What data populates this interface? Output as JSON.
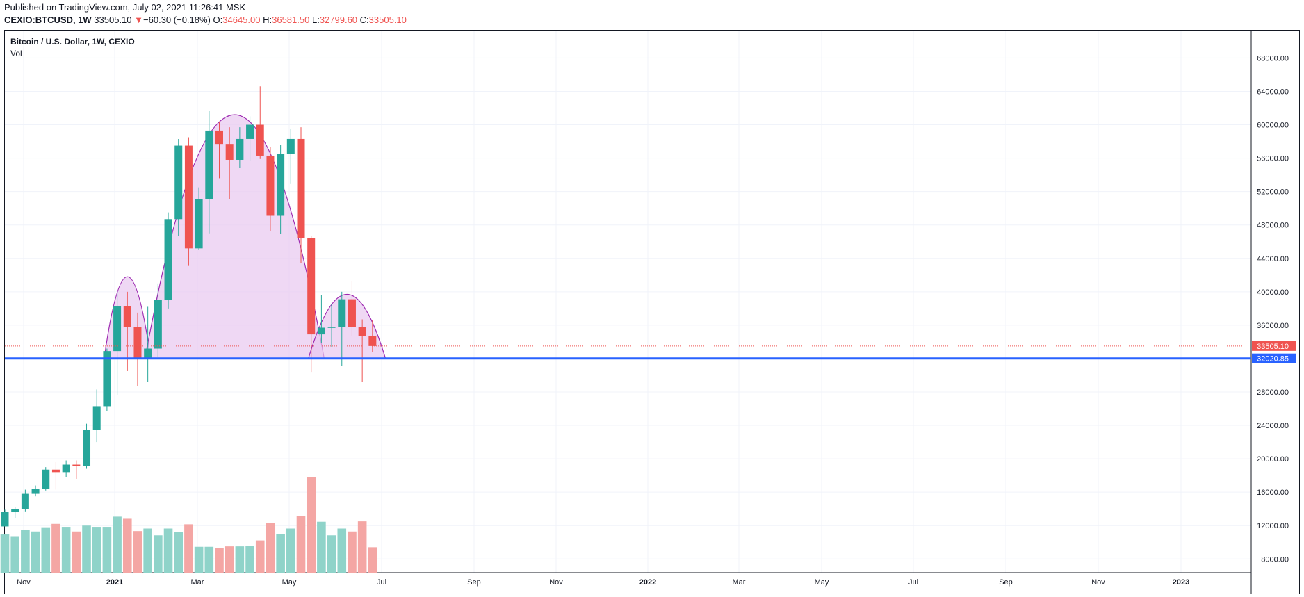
{
  "header": {
    "published": "Published on TradingView.com, July 02, 2021 11:26:41 MSK",
    "symbol": "CEXIO:BTCUSD, 1W",
    "last": "33505.10",
    "change_arrow": "▼",
    "change": "−60.30 (−0.18%)",
    "o_label": "O:",
    "o_value": "34645.00",
    "h_label": "H:",
    "h_value": "36581.50",
    "l_label": "L:",
    "l_value": "32799.60",
    "c_label": "C:",
    "c_value": "33505.10"
  },
  "legend": {
    "title": "Bitcoin / U.S. Dollar, 1W, CEXIO",
    "indicator": "Vol"
  },
  "colors": {
    "up": "#26a69a",
    "down": "#ef5350",
    "vol_up": "#8fd3c9",
    "vol_down": "#f4a6a4",
    "support": "#2962ff",
    "pattern_fill": "#e8c8ef",
    "pattern_stroke": "#9c27b0"
  },
  "chart_data": {
    "type": "candlestick",
    "title": "Bitcoin / U.S. Dollar, 1W, CEXIO",
    "y_axis_ticks": [
      "68000.00",
      "64000.00",
      "60000.00",
      "56000.00",
      "52000.00",
      "48000.00",
      "44000.00",
      "40000.00",
      "36000.00",
      "32000.00",
      "28000.00",
      "24000.00",
      "20000.00",
      "16000.00",
      "12000.00",
      "8000.00"
    ],
    "x_axis_ticks": [
      "Nov",
      "2021",
      "Mar",
      "May",
      "Jul",
      "Sep",
      "Nov",
      "2022",
      "Mar",
      "May",
      "Jul",
      "Sep",
      "Nov",
      "2023"
    ],
    "last_price_label": "33505.10",
    "support_label": "32020.85",
    "support_level": 32020.85,
    "last_price": 33505.1,
    "candles": [
      {
        "o": 11900,
        "h": 13900,
        "l": 11900,
        "c": 13600
      },
      {
        "o": 13600,
        "h": 14200,
        "l": 12900,
        "c": 14000
      },
      {
        "o": 14000,
        "h": 16300,
        "l": 13700,
        "c": 15800
      },
      {
        "o": 15800,
        "h": 16800,
        "l": 15500,
        "c": 16400
      },
      {
        "o": 16400,
        "h": 19000,
        "l": 16200,
        "c": 18700
      },
      {
        "o": 18700,
        "h": 19600,
        "l": 16300,
        "c": 18400
      },
      {
        "o": 18400,
        "h": 19800,
        "l": 17800,
        "c": 19300
      },
      {
        "o": 19300,
        "h": 19800,
        "l": 17600,
        "c": 19100
      },
      {
        "o": 19100,
        "h": 24200,
        "l": 18800,
        "c": 23500
      },
      {
        "o": 23500,
        "h": 28300,
        "l": 22000,
        "c": 26300
      },
      {
        "o": 26300,
        "h": 33200,
        "l": 25700,
        "c": 32900
      },
      {
        "o": 32900,
        "h": 40000,
        "l": 27600,
        "c": 38300
      },
      {
        "o": 38300,
        "h": 40000,
        "l": 30500,
        "c": 35800
      },
      {
        "o": 35800,
        "h": 37500,
        "l": 28700,
        "c": 32100
      },
      {
        "o": 32100,
        "h": 38200,
        "l": 29200,
        "c": 33200
      },
      {
        "o": 33200,
        "h": 41000,
        "l": 32200,
        "c": 39000
      },
      {
        "o": 39000,
        "h": 49500,
        "l": 38000,
        "c": 48700
      },
      {
        "o": 48700,
        "h": 58300,
        "l": 46700,
        "c": 57500
      },
      {
        "o": 57500,
        "h": 58500,
        "l": 43100,
        "c": 45200
      },
      {
        "o": 45200,
        "h": 52500,
        "l": 45000,
        "c": 51100
      },
      {
        "o": 51100,
        "h": 61700,
        "l": 47000,
        "c": 59300
      },
      {
        "o": 59300,
        "h": 60300,
        "l": 53600,
        "c": 57700
      },
      {
        "o": 57700,
        "h": 59700,
        "l": 51100,
        "c": 55800
      },
      {
        "o": 55800,
        "h": 59700,
        "l": 54800,
        "c": 58300
      },
      {
        "o": 58300,
        "h": 61000,
        "l": 55700,
        "c": 60000
      },
      {
        "o": 60000,
        "h": 64600,
        "l": 55900,
        "c": 56300
      },
      {
        "o": 56300,
        "h": 57300,
        "l": 47300,
        "c": 49100
      },
      {
        "o": 49100,
        "h": 57600,
        "l": 46900,
        "c": 56500
      },
      {
        "o": 56500,
        "h": 59500,
        "l": 52900,
        "c": 58300
      },
      {
        "o": 58300,
        "h": 59700,
        "l": 43400,
        "c": 46400
      },
      {
        "o": 46400,
        "h": 46700,
        "l": 30400,
        "c": 34900
      },
      {
        "o": 34900,
        "h": 39600,
        "l": 33900,
        "c": 35700
      },
      {
        "o": 35700,
        "h": 38500,
        "l": 33400,
        "c": 35800
      },
      {
        "o": 35800,
        "h": 40000,
        "l": 31100,
        "c": 39100
      },
      {
        "o": 39100,
        "h": 41300,
        "l": 34700,
        "c": 35800
      },
      {
        "o": 35800,
        "h": 36700,
        "l": 29200,
        "c": 34700
      },
      {
        "o": 34700,
        "h": 36600,
        "l": 32800,
        "c": 33505
      }
    ],
    "volume": [
      9000,
      8600,
      10000,
      9700,
      10700,
      11500,
      10800,
      9700,
      11100,
      10800,
      10800,
      13200,
      12700,
      9800,
      10400,
      8800,
      10400,
      9500,
      11400,
      6100,
      6100,
      5800,
      6200,
      6200,
      6300,
      7600,
      11700,
      9100,
      10400,
      13300,
      22600,
      12000,
      8800,
      10400,
      9700,
      12100,
      6000
    ],
    "patterns": [
      {
        "name": "left-shoulder",
        "from": 10,
        "to": 14,
        "peak": 41800
      },
      {
        "name": "head",
        "from": 14,
        "to": 31,
        "peak": 61200
      },
      {
        "name": "right-shoulder",
        "from": 30,
        "to": 37,
        "peak": 39700
      }
    ]
  }
}
